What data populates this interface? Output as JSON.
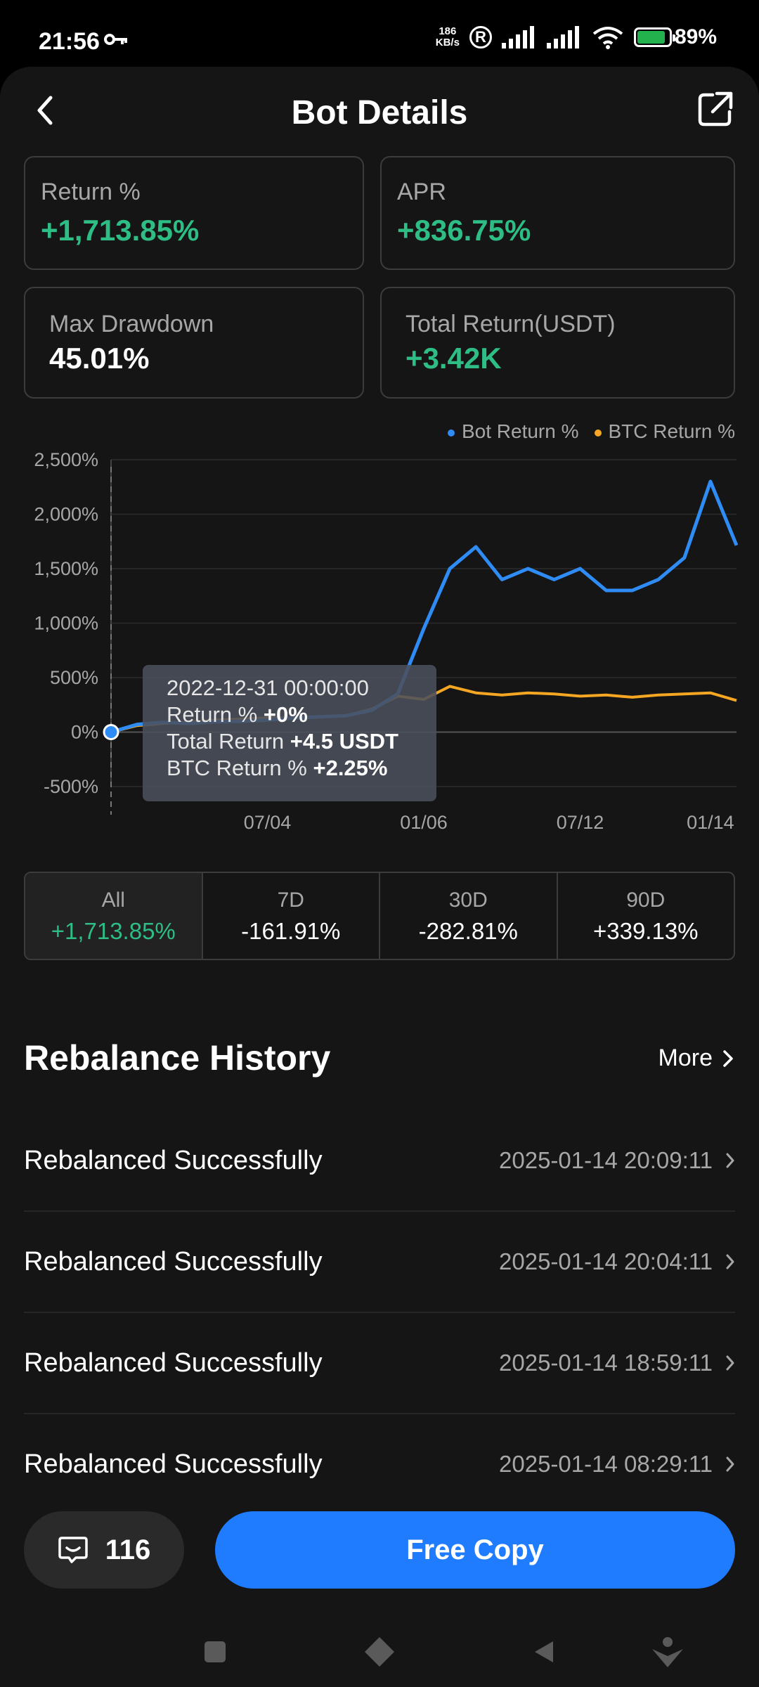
{
  "status": {
    "time": "21:56",
    "speed_value": "186",
    "speed_unit": "KB/s",
    "battery": "89%"
  },
  "header": {
    "title": "Bot Details"
  },
  "stats": {
    "return_label": "Return %",
    "return_value": "+1,713.85%",
    "apr_label": "APR",
    "apr_value": "+836.75%",
    "drawdown_label": "Max Drawdown",
    "drawdown_value": "45.01%",
    "total_label": "Total Return(USDT)",
    "total_value": "+3.42K"
  },
  "chart_data": {
    "type": "line",
    "x": [
      "2022-12-31",
      "2023-02-01",
      "2023-03-01",
      "2023-04-01",
      "2023-05-01",
      "2023-06-01",
      "2023-07-04",
      "2023-08-01",
      "2023-09-01",
      "2023-10-01",
      "2023-11-01",
      "2023-12-01",
      "2024-01-06",
      "2024-02-01",
      "2024-03-01",
      "2024-04-01",
      "2024-05-01",
      "2024-06-01",
      "2024-07-12",
      "2024-08-01",
      "2024-09-01",
      "2024-10-01",
      "2024-11-01",
      "2024-12-01",
      "2025-01-14"
    ],
    "series": [
      {
        "name": "Bot Return %",
        "color": "#2f8cf5",
        "values": [
          0,
          70,
          90,
          80,
          95,
          100,
          110,
          130,
          140,
          150,
          200,
          350,
          950,
          1500,
          1700,
          1400,
          1500,
          1400,
          1500,
          1300,
          1300,
          1400,
          1600,
          2300,
          1714
        ]
      },
      {
        "name": "BTC Return %",
        "color": "#f5a623",
        "values": [
          0,
          60,
          80,
          90,
          110,
          120,
          130,
          130,
          140,
          150,
          210,
          330,
          300,
          420,
          360,
          340,
          360,
          350,
          330,
          340,
          320,
          340,
          350,
          360,
          290
        ]
      }
    ],
    "x_ticks": [
      "07/04",
      "01/06",
      "07/12",
      "01/14"
    ],
    "y_ticks": [
      "2,500%",
      "2,000%",
      "1,500%",
      "1,000%",
      "500%",
      "0%",
      "-500%"
    ],
    "ylim": [
      -500,
      2500
    ],
    "legend_position": "top-right"
  },
  "tooltip": {
    "date": "2022-12-31 00:00:00",
    "return_label": "Return %",
    "return_value": "+0%",
    "total_label": "Total Return",
    "total_value": "+4.5 USDT",
    "btc_label": "BTC Return %",
    "btc_value": "+2.25%"
  },
  "periods": [
    {
      "label": "All",
      "value": "+1,713.85%"
    },
    {
      "label": "7D",
      "value": "-161.91%"
    },
    {
      "label": "30D",
      "value": "-282.81%"
    },
    {
      "label": "90D",
      "value": "+339.13%"
    }
  ],
  "history": {
    "title": "Rebalance History",
    "more": "More",
    "rows": [
      {
        "title": "Rebalanced Successfully",
        "time": "2025-01-14 20:09:11"
      },
      {
        "title": "Rebalanced Successfully",
        "time": "2025-01-14 20:04:11"
      },
      {
        "title": "Rebalanced Successfully",
        "time": "2025-01-14 18:59:11"
      },
      {
        "title": "Rebalanced Successfully",
        "time": "2025-01-14 08:29:11"
      }
    ]
  },
  "bottom": {
    "comments": "116",
    "copy_label": "Free Copy"
  }
}
